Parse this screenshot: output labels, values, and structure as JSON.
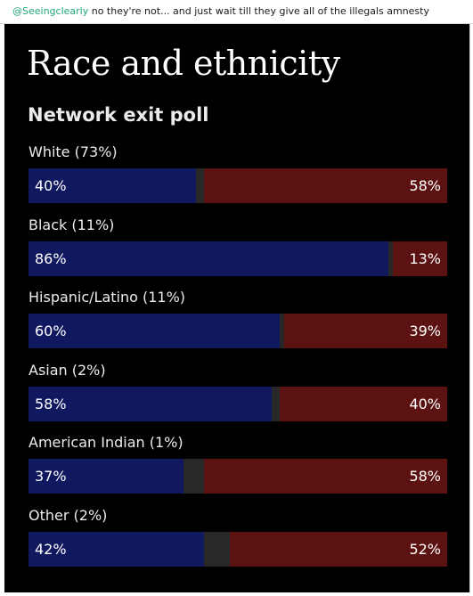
{
  "comment": {
    "handle": "@Seeingclearly",
    "text": " no they're not... and just wait till they give all of the illegals amnesty"
  },
  "colors": {
    "background": "#000000",
    "democrat": "#10185f",
    "republican": "#5c1210",
    "other": "#282828"
  },
  "chart_data": {
    "type": "bar",
    "title": "Race and ethnicity",
    "subtitle": "Network exit poll",
    "categories": [
      "White (73%)",
      "Black (11%)",
      "Hispanic/Latino (11%)",
      "Asian (2%)",
      "American Indian (1%)",
      "Other (2%)"
    ],
    "series": [
      {
        "values": [
          40,
          86,
          60,
          58,
          37,
          42
        ],
        "labels": [
          "40%",
          "86%",
          "60%",
          "58%",
          "37%",
          "42%"
        ],
        "color": "#10185f"
      },
      {
        "values": [
          58,
          13,
          39,
          40,
          58,
          52
        ],
        "labels": [
          "58%",
          "13%",
          "39%",
          "40%",
          "58%",
          "52%"
        ],
        "color": "#5c1210"
      }
    ],
    "stacked": true,
    "xlim": [
      0,
      100
    ],
    "grid": false,
    "legend": "none"
  }
}
